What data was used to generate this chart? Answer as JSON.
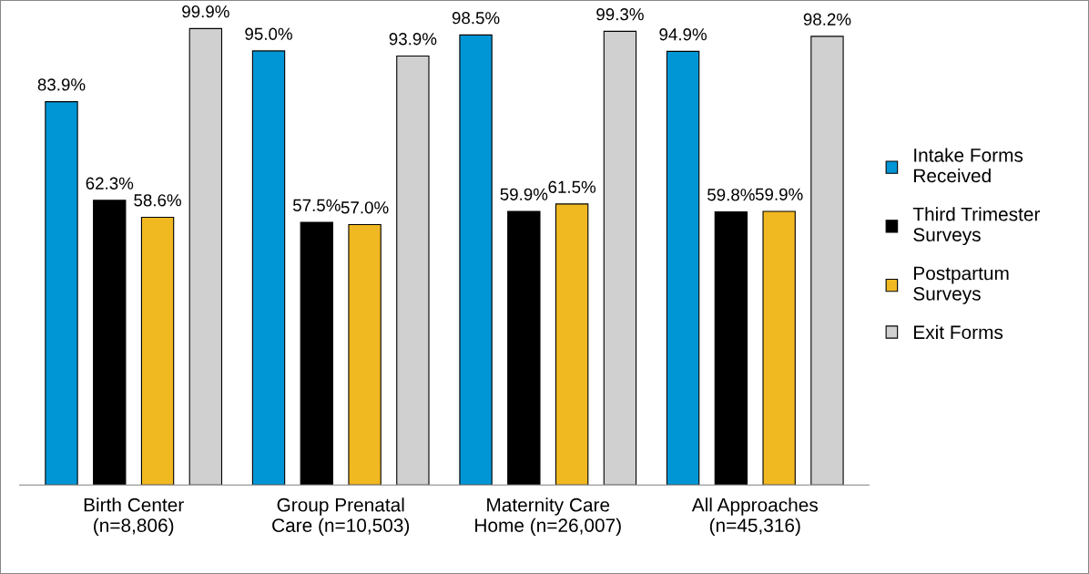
{
  "chart_data": {
    "type": "bar",
    "categories": [
      "Birth Center\n(n=8,806)",
      "Group Prenatal\nCare (n=10,503)",
      "Maternity Care\nHome (n=26,007)",
      "All Approaches\n(n=45,316)"
    ],
    "series": [
      {
        "name": "Intake Forms\nReceived",
        "color": "#0096d6",
        "values": [
          83.9,
          95.0,
          98.5,
          94.9
        ],
        "value_labels": [
          "83.9%",
          "95.0%",
          "98.5%",
          "94.9%"
        ]
      },
      {
        "name": "Third Trimester\nSurveys",
        "color": "#000000",
        "values": [
          62.3,
          57.5,
          59.9,
          59.8
        ],
        "value_labels": [
          "62.3%",
          "57.5%",
          "59.9%",
          "59.8%"
        ]
      },
      {
        "name": "Postpartum\nSurveys",
        "color": "#f0b921",
        "values": [
          58.6,
          57.0,
          61.5,
          59.9
        ],
        "value_labels": [
          "58.6%",
          "57.0%",
          "61.5%",
          "59.9%"
        ]
      },
      {
        "name": "Exit Forms",
        "color": "#d0d0d0",
        "values": [
          99.9,
          93.9,
          99.3,
          98.2
        ],
        "value_labels": [
          "99.9%",
          "93.9%",
          "99.3%",
          "98.2%"
        ]
      }
    ],
    "legend": "right"
  }
}
